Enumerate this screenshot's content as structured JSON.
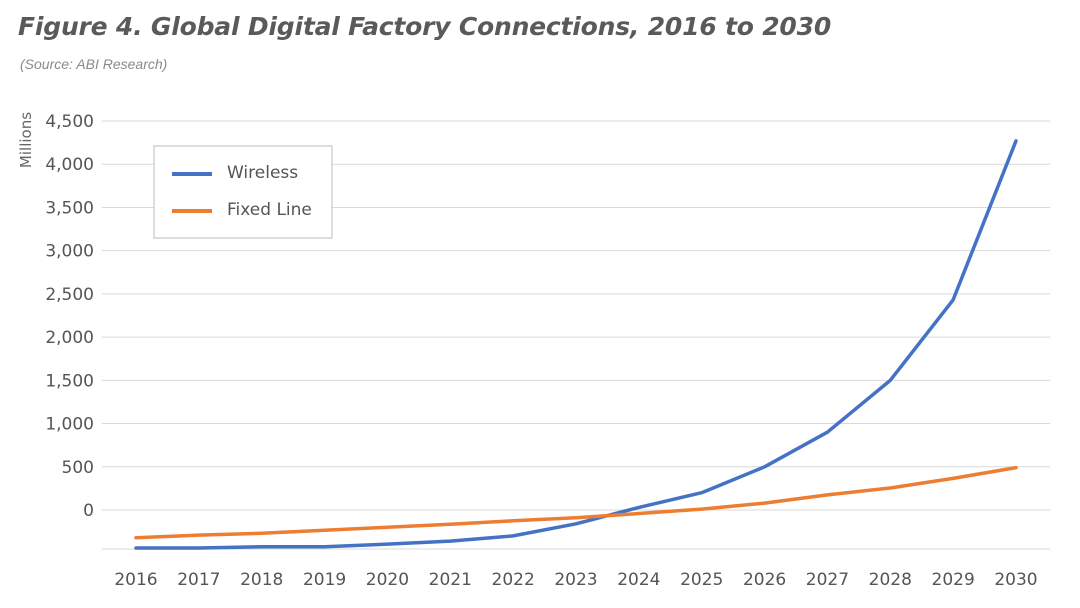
{
  "header": {
    "title": "Figure 4. Global Digital Factory Connections, 2016 to 2030",
    "subtitle": "(Source: ABI Research)"
  },
  "chart_data": {
    "type": "line",
    "title": "Figure 4. Global Digital Factory Connections, 2016 to 2030",
    "subtitle": "(Source: ABI Research)",
    "xlabel": "",
    "ylabel": "Millions",
    "x": [
      "2016",
      "2017",
      "2018",
      "2019",
      "2020",
      "2021",
      "2022",
      "2023",
      "2024",
      "2025",
      "2026",
      "2027",
      "2028",
      "2029",
      "2030"
    ],
    "y_ticks": [
      "4,500",
      "4,000",
      "3,500",
      "3,000",
      "2,500",
      "2,000",
      "1,500",
      "1,000",
      "500",
      "0"
    ],
    "ylim": [
      -450,
      4500
    ],
    "grid": true,
    "legend_position": "top-left",
    "series": [
      {
        "name": "Wireless",
        "color": "#4472C4",
        "values": [
          -440,
          -440,
          -425,
          -425,
          -395,
          -360,
          -300,
          -160,
          30,
          200,
          500,
          900,
          1500,
          2430,
          4270
        ]
      },
      {
        "name": "Fixed Line",
        "color": "#ED7D31",
        "values": [
          -320,
          -290,
          -270,
          -235,
          -200,
          -165,
          -125,
          -90,
          -40,
          10,
          80,
          175,
          255,
          365,
          490
        ]
      }
    ]
  }
}
